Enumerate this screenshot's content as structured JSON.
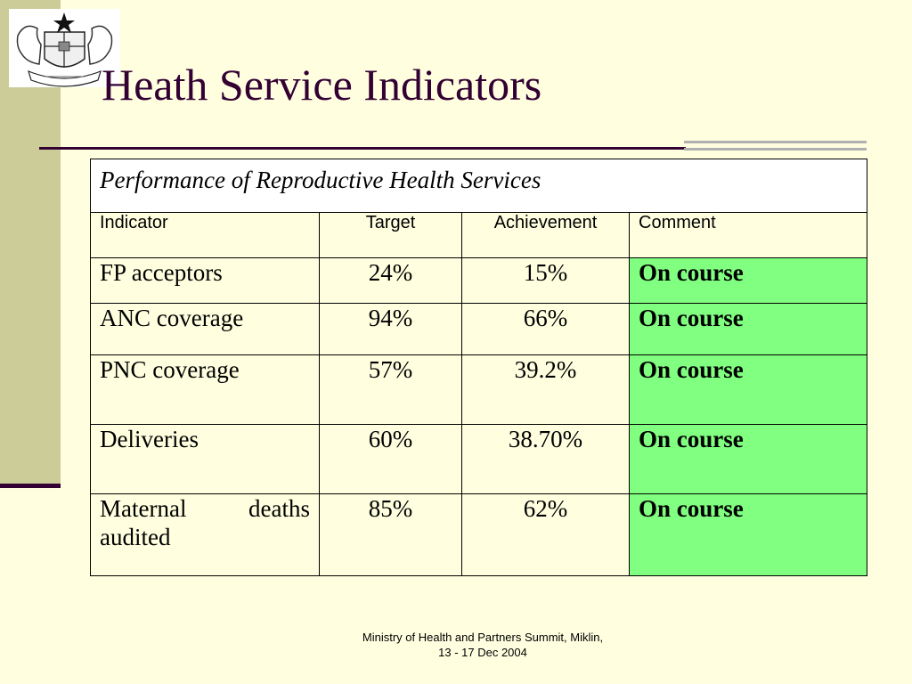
{
  "slide": {
    "title": "Heath Service Indicators",
    "logo_icon": "coat-of-arms-emblem"
  },
  "table": {
    "caption": "Performance of Reproductive Health Services",
    "headers": [
      "Indicator",
      "Target",
      "Achievement",
      "Comment"
    ],
    "rows": [
      {
        "indicator": "FP acceptors",
        "target": "24%",
        "achievement": "15%",
        "comment": "On course"
      },
      {
        "indicator": "ANC coverage",
        "target": "94%",
        "achievement": "66%",
        "comment": "On course"
      },
      {
        "indicator": "PNC coverage",
        "target": "57%",
        "achievement": "39.2%",
        "comment": "On course"
      },
      {
        "indicator": "Deliveries",
        "target": "60%",
        "achievement": "38.70%",
        "comment": "On course"
      },
      {
        "indicator": "Maternal deaths audited",
        "target": "85%",
        "achievement": "62%",
        "comment": "On course"
      }
    ],
    "comment_highlight_color": "#80FF80"
  },
  "footer": {
    "line1": "Ministry of Health and Partners Summit, Miklin,",
    "line2": "13 - 17 Dec 2004"
  },
  "colors": {
    "background": "#FFFFE0",
    "left_bar": "#CCCC99",
    "title": "#330033"
  }
}
